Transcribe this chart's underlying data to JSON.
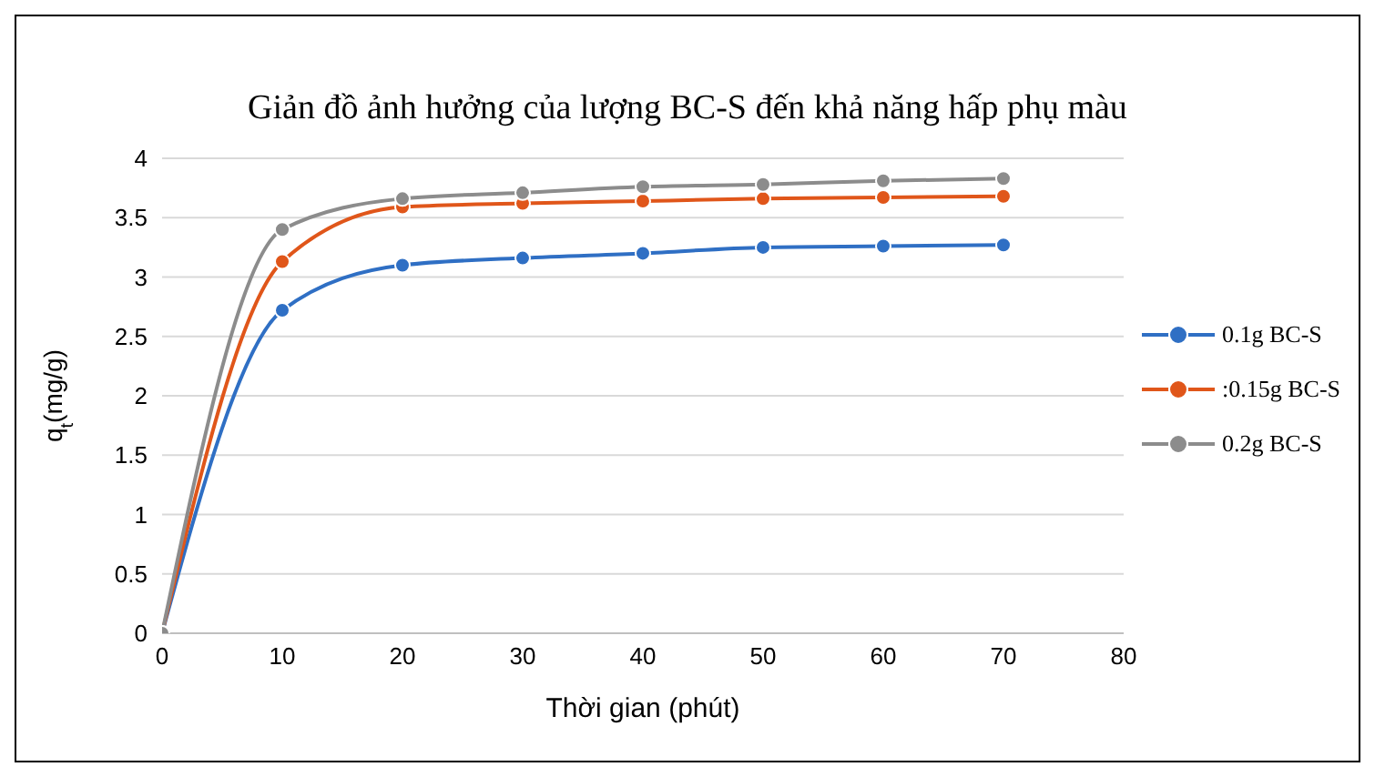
{
  "chart_data": {
    "type": "line",
    "title": "Giản đồ ảnh hưởng của lượng BC-S đến khả năng hấp phụ màu",
    "xlabel": "Thời gian (phút)",
    "ylabel": "q$_{t}$(mg/g)",
    "x": [
      0,
      10,
      20,
      30,
      40,
      50,
      60,
      70
    ],
    "series": [
      {
        "name": "0.1g BC-S",
        "color": "#2f6fc4",
        "values": [
          0,
          2.72,
          3.1,
          3.16,
          3.2,
          3.25,
          3.26,
          3.27
        ]
      },
      {
        "name": ":0.15g BC-S",
        "color": "#e0561a",
        "values": [
          0,
          3.13,
          3.59,
          3.62,
          3.64,
          3.66,
          3.67,
          3.68
        ]
      },
      {
        "name": "0.2g BC-S",
        "color": "#8c8c8c",
        "values": [
          0,
          3.4,
          3.66,
          3.71,
          3.76,
          3.78,
          3.81,
          3.83
        ]
      }
    ],
    "xlim": [
      0,
      80
    ],
    "xticks": [
      0,
      10,
      20,
      30,
      40,
      50,
      60,
      70,
      80
    ],
    "ylim": [
      0,
      4
    ],
    "yticks": [
      0,
      0.5,
      1,
      1.5,
      2,
      2.5,
      3,
      3.5,
      4
    ],
    "grid": "y",
    "legend": "right",
    "marker": "circle",
    "line_style": "solid"
  }
}
